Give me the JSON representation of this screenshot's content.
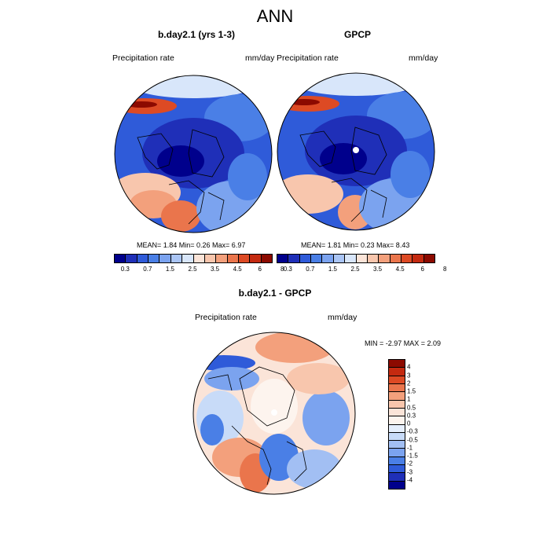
{
  "figure": {
    "title": "ANN"
  },
  "panels": [
    {
      "title": "b.day2.1 (yrs 1-3)",
      "left_label": "Precipitation rate",
      "right_label": "mm/day",
      "stats": "MEAN=   1.84  Min=   0.26  Max=   6.97"
    },
    {
      "title": "GPCP",
      "left_label": "Precipitation rate",
      "right_label": "mm/day",
      "stats": "MEAN=   1.81  Min=   0.23  Max=   8.43"
    }
  ],
  "abs_colorbar": {
    "colors": [
      "#00008c",
      "#1f2fb8",
      "#2f5bd9",
      "#4a7fe6",
      "#7ba3ef",
      "#aac5f5",
      "#d8e6fa",
      "#fbe4d8",
      "#f8c6ad",
      "#f3a07c",
      "#ea754c",
      "#dd4a24",
      "#c42a10",
      "#8c0a00"
    ],
    "labels": [
      "0.3",
      "0.7",
      "1.5",
      "2.5",
      "3.5",
      "4.5",
      "6",
      "8"
    ]
  },
  "diff_panel": {
    "title": "b.day2.1 - GPCP",
    "left_label": "Precipitation rate",
    "right_label": "mm/day",
    "minmax": "MIN =  -2.97 MAX =   2.09"
  },
  "diff_colorbar": {
    "colors": [
      "#8c0a00",
      "#c42a10",
      "#dd4a24",
      "#ea754c",
      "#f3a07c",
      "#f8c6ad",
      "#fbe4d8",
      "#fdf4ee",
      "#e6effc",
      "#c8dbf8",
      "#a2bff3",
      "#7ba3ef",
      "#4a7fe6",
      "#2f5bd9",
      "#1f2fb8",
      "#00008c"
    ],
    "labels": [
      "4",
      "3",
      "2",
      "1.5",
      "1",
      "0.5",
      "0.3",
      "0",
      "-0.3",
      "-0.5",
      "-1",
      "-1.5",
      "-2",
      "-3",
      "-4"
    ]
  }
}
